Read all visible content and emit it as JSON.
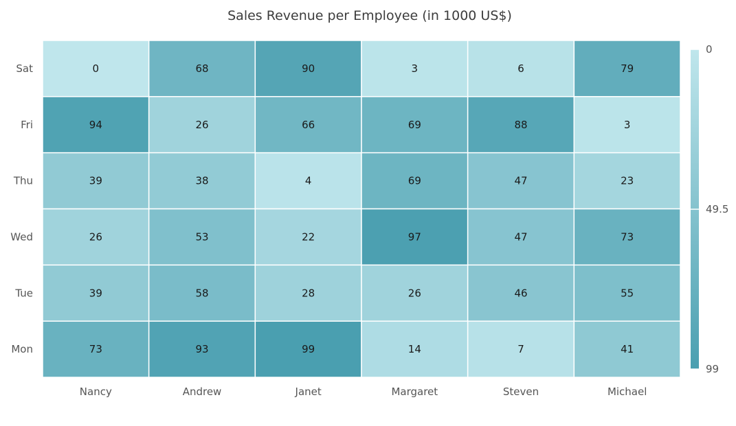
{
  "chart_data": {
    "type": "heatmap",
    "title": "Sales Revenue per Employee (in 1000 US$)",
    "xlabel": "",
    "ylabel": "",
    "x_categories": [
      "Nancy",
      "Andrew",
      "Janet",
      "Margaret",
      "Steven",
      "Michael"
    ],
    "y_categories": [
      "Sat",
      "Fri",
      "Thu",
      "Wed",
      "Tue",
      "Mon"
    ],
    "values": [
      [
        0,
        68,
        90,
        3,
        6,
        79
      ],
      [
        94,
        26,
        66,
        69,
        88,
        3
      ],
      [
        39,
        38,
        4,
        69,
        47,
        23
      ],
      [
        26,
        53,
        22,
        97,
        47,
        73
      ],
      [
        39,
        58,
        28,
        26,
        46,
        55
      ],
      [
        73,
        93,
        99,
        14,
        7,
        41
      ]
    ],
    "legend": {
      "placement": "right",
      "labels": [
        "0",
        "49.5",
        "99"
      ],
      "min": 0,
      "max": 99
    },
    "colors": {
      "low": "#bfe6ec",
      "high": "#4a9fb0"
    }
  }
}
